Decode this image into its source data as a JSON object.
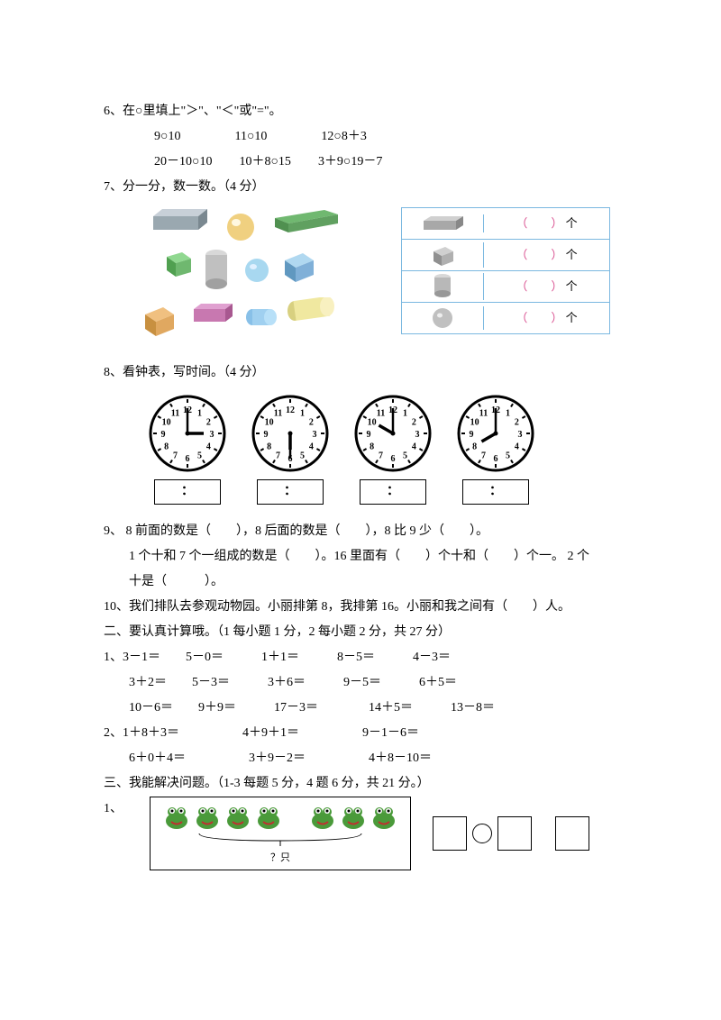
{
  "q6": {
    "title": "6、在○里填上\"＞\"、\"＜\"或\"=\"。",
    "row1": [
      "9○10",
      "11○10",
      "12○8＋3"
    ],
    "row2": [
      "20－10○10",
      "10＋8○15",
      "3＋9○19－7"
    ]
  },
  "q7": {
    "title": "7、分一分，数一数。（4 分）",
    "unit": "个"
  },
  "q8": {
    "title": "8、看钟表，写时间。（4 分）",
    "colon": "："
  },
  "clocks": [
    {
      "hour": 90,
      "min": 0
    },
    {
      "hour": 180,
      "min": 180
    },
    {
      "hour": 300,
      "min": 0
    },
    {
      "hour": 240,
      "min": 0
    }
  ],
  "q9": {
    "l1": "9、 8 前面的数是（　　），8 后面的数是（　　），8 比 9 少（　　）。",
    "l2": "1 个十和 7 个一组成的数是（　　）。16 里面有（　　）个十和（　　）个一。 2 个",
    "l3": "十是（　　　）。"
  },
  "q10": "10、我们排队去参观动物园。小丽排第 8，我排第 16。小丽和我之间有（　　）人。",
  "s2": {
    "title": "二、要认真计算哦。（1 每小题 1 分，2 每小题 2 分，共 27 分）",
    "r1a": "1、3－1＝　　5－0＝　　　1＋1＝　　　8－5＝　　　4－3＝",
    "r1b": "3＋2＝　　5－3＝　　　3＋6＝　　　9－5＝　　　6＋5＝",
    "r1c": "10－6＝　　9＋9＝　　　17－3＝　　　　14＋5＝　　　13－8＝",
    "r2a": "2、1＋8＋3＝　　　　　4＋9＋1＝　　　　　9－1－6＝",
    "r2b": "6＋0＋4＝　　　　　3＋9－2＝　　　　　4＋8－10＝"
  },
  "s3": {
    "title": "三、我能解决问题。（1-3 每题 5 分，4 题 6 分，共 21 分。）",
    "q1": "1、",
    "frogq": "？只"
  },
  "colors": {
    "cuboid": "#9aa8b0",
    "cube": "#6fb86f",
    "cylinder": "#88c0e8",
    "sphere": "#f0c060",
    "paren": "#d94f8f",
    "tableBorder": "#7bb8e0"
  }
}
